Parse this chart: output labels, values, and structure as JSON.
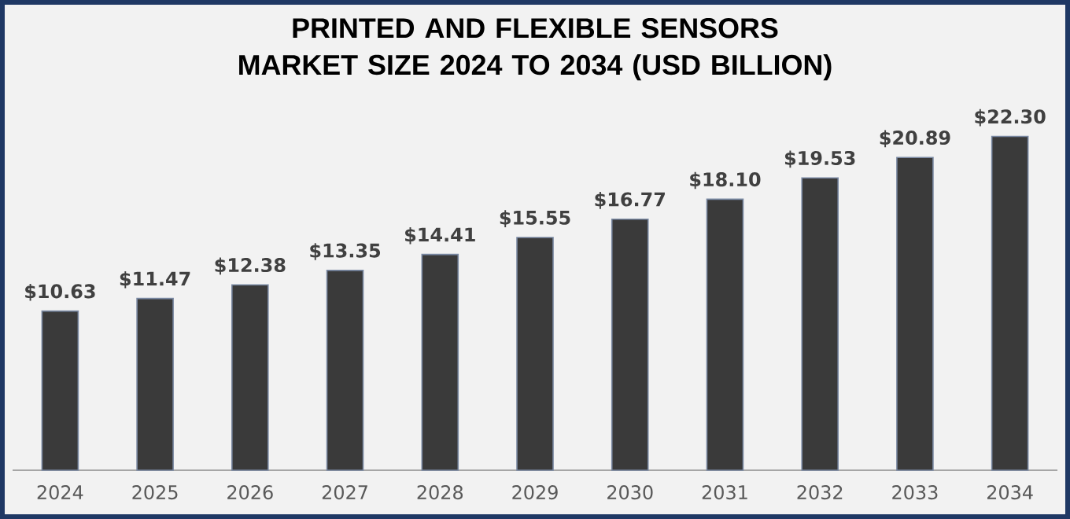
{
  "chart_data": {
    "type": "bar",
    "title": "PRINTED AND FLEXIBLE SENSORS MARKET SIZE 2024 TO 2034 (USD BILLION)",
    "categories": [
      "2024",
      "2025",
      "2026",
      "2027",
      "2028",
      "2029",
      "2030",
      "2031",
      "2032",
      "2033",
      "2034"
    ],
    "values": [
      10.63,
      11.47,
      12.38,
      13.35,
      14.41,
      15.55,
      16.77,
      18.1,
      19.53,
      20.89,
      22.3
    ],
    "value_labels": [
      "$10.63",
      "$11.47",
      "$12.38",
      "$13.35",
      "$14.41",
      "$15.55",
      "$16.77",
      "$18.10",
      "$19.53",
      "$20.89",
      "$22.30"
    ],
    "color": "#3a3a3a"
  }
}
